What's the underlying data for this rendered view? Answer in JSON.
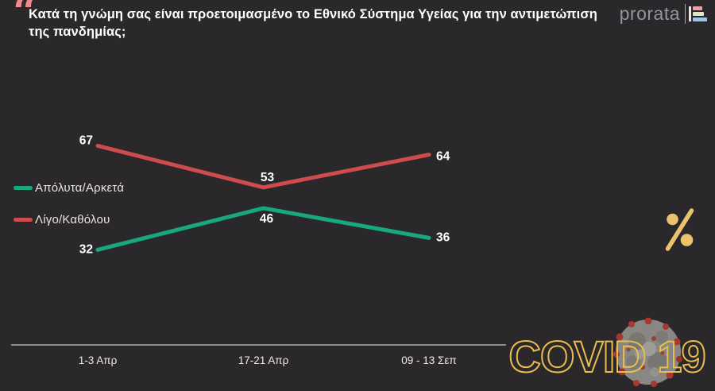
{
  "header": {
    "quote_glyph": "“",
    "title": "Κατά τη γνώμη σας είναι προετοιμασμένο το Εθνικό Σύστημα Υγείας για την αντιμετώπιση της πανδημίας;"
  },
  "logo": {
    "text": "prorata"
  },
  "percent_symbol": "%",
  "covid_badge": {
    "text": "COVID 19"
  },
  "chart_data": {
    "type": "line",
    "categories": [
      "1-3 Απρ",
      "17-21 Απρ",
      "09 - 13 Σεπ"
    ],
    "series": [
      {
        "name": "Απόλυτα/Αρκετά",
        "color": "#17a97d",
        "values": [
          32,
          46,
          36
        ]
      },
      {
        "name": "Λίγο/Καθόλου",
        "color": "#cf4b4e",
        "values": [
          67,
          53,
          64
        ]
      }
    ],
    "ylim": [
      0,
      100
    ],
    "grid": false,
    "legend_position": "left",
    "xlabel": "",
    "ylabel": ""
  },
  "colors": {
    "background": "#2a282a",
    "title": "#ffffff",
    "quote": "#ec8a8d",
    "logo_text": "#97959a",
    "logo_bar_pink": "#e7a2a8",
    "logo_bar_cream": "#e3e6c3",
    "logo_bar_blue": "#9fc4df",
    "gold": "#eac46c",
    "covid_gold": "#e9bd4f",
    "axis_text": "#eeebe4",
    "axis_line": "#f2efe9"
  }
}
